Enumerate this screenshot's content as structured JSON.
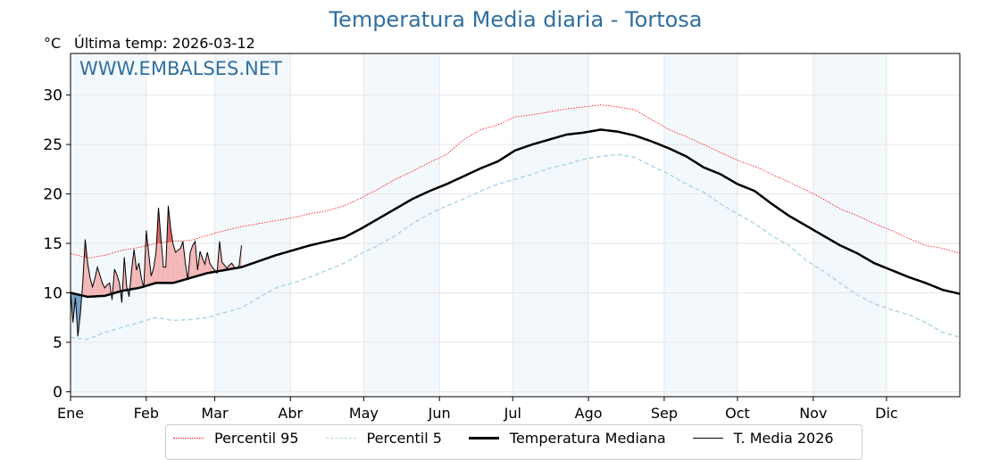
{
  "chart_data": {
    "type": "line",
    "title": "Temperatura Media diaria - Tortosa",
    "ylabel": "°C",
    "subtitle": "Última temp: 2026-03-12",
    "watermark": "WWW.EMBALSES.NET",
    "ylim": [
      -0.5,
      34.2
    ],
    "xlim_days": [
      0,
      364
    ],
    "yticks": [
      0,
      5,
      10,
      15,
      20,
      25,
      30
    ],
    "months": [
      {
        "label": "Ene",
        "day": 0
      },
      {
        "label": "Feb",
        "day": 31
      },
      {
        "label": "Mar",
        "day": 59
      },
      {
        "label": "Abr",
        "day": 90
      },
      {
        "label": "May",
        "day": 120
      },
      {
        "label": "Jun",
        "day": 151
      },
      {
        "label": "Jul",
        "day": 181
      },
      {
        "label": "Ago",
        "day": 212
      },
      {
        "label": "Sep",
        "day": 243
      },
      {
        "label": "Oct",
        "day": 273
      },
      {
        "label": "Nov",
        "day": 304
      },
      {
        "label": "Dic",
        "day": 334
      }
    ],
    "grid": true,
    "legend_position": "bottom-center",
    "weekly_step_days": 7,
    "series": [
      {
        "name": "Percentil 95",
        "color": "#ff0000",
        "style": "dotted",
        "values": [
          14,
          13.5,
          13.8,
          14.3,
          14.6,
          15,
          15.2,
          15.3,
          15.8,
          16.3,
          16.7,
          17,
          17.3,
          17.6,
          18,
          18.3,
          18.8,
          19.6,
          20.5,
          21.5,
          22.3,
          23.2,
          24,
          25.5,
          26.5,
          27,
          27.8,
          28,
          28.3,
          28.6,
          28.8,
          29,
          28.8,
          28.5,
          27.5,
          26.5,
          25.8,
          25,
          24.2,
          23.4,
          22.8,
          22,
          21.2,
          20.4,
          19.5,
          18.5,
          17.8,
          17,
          16.3,
          15.5,
          14.8,
          14.5,
          14
        ]
      },
      {
        "name": "Percentil 5",
        "color": "#add8e6",
        "style": "dashed",
        "values": [
          5.5,
          5.3,
          6,
          6.5,
          7,
          7.5,
          7.2,
          7.3,
          7.5,
          8,
          8.5,
          9.5,
          10.5,
          11,
          11.6,
          12.3,
          13,
          14,
          14.8,
          15.8,
          17,
          18,
          18.8,
          19.5,
          20.3,
          21,
          21.5,
          22,
          22.6,
          23,
          23.5,
          23.8,
          24,
          23.7,
          22.8,
          22,
          21,
          20.2,
          19,
          18,
          17,
          15.8,
          14.8,
          13.3,
          12.2,
          11,
          9.8,
          8.9,
          8.3,
          7.8,
          7,
          6,
          5.5
        ]
      },
      {
        "name": "Temperatura Mediana",
        "color": "#000000",
        "style": "solid-thick",
        "values": [
          10,
          9.6,
          9.7,
          10.2,
          10.5,
          11,
          11,
          11.5,
          12,
          12.3,
          12.6,
          13.2,
          13.8,
          14.3,
          14.8,
          15.2,
          15.6,
          16.5,
          17.5,
          18.5,
          19.5,
          20.3,
          21,
          21.8,
          22.6,
          23.3,
          24.4,
          25,
          25.5,
          26,
          26.2,
          26.5,
          26.3,
          25.9,
          25.3,
          24.6,
          23.8,
          22.7,
          22,
          21,
          20.3,
          19,
          17.8,
          16.8,
          15.8,
          14.8,
          14,
          13,
          12.3,
          11.6,
          11,
          10.3,
          9.9
        ]
      },
      {
        "name": "T. Media 2026",
        "color": "#000000",
        "style": "solid-thin",
        "daily": true,
        "values": [
          10.1,
          7,
          9.5,
          5.6,
          7.8,
          11,
          15.4,
          13,
          11.5,
          10.6,
          11.5,
          12.6,
          11.8,
          11,
          10.5,
          10.8,
          11,
          9.3,
          12.4,
          11.8,
          11,
          9,
          13.6,
          10.6,
          9.6,
          12.3,
          14.4,
          12.3,
          13,
          11.5,
          10.5,
          16.3,
          14,
          11.7,
          12.5,
          14.1,
          18.6,
          15.5,
          12.6,
          12.6,
          18.8,
          16.5,
          14.9,
          14.1,
          14.3,
          14.5,
          15.2,
          13,
          11.3,
          14.1,
          14.8,
          15.2,
          12.3,
          14.2,
          13.5,
          12.9,
          14.1,
          13,
          12.6,
          12.3,
          12,
          15.2,
          13.1,
          12.8,
          12.5,
          12.8,
          13,
          12.6,
          12.5,
          12.7,
          14.8
        ]
      }
    ],
    "fill_colors": {
      "above": "#f4b6b6",
      "above_p95": "#e06666",
      "below": "#6f9cc4"
    }
  }
}
